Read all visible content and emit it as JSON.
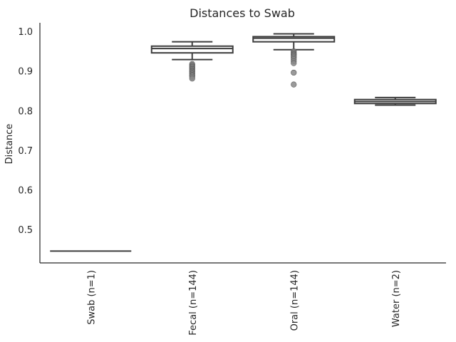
{
  "chart_data": {
    "type": "box",
    "title": "Distances to Swab",
    "xlabel": "",
    "ylabel": "Distance",
    "ylim": [
      0.415,
      1.022
    ],
    "yticks": [
      "0.5",
      "0.6",
      "0.7",
      "0.8",
      "0.9",
      "1.0"
    ],
    "grid": false,
    "categories": [
      "Swab (n=1)",
      "Fecal (n=144)",
      "Oral (n=144)",
      "Water (n=2)"
    ],
    "boxes": [
      {
        "category": "Swab (n=1)",
        "whislo": 0.445,
        "q1": 0.445,
        "med": 0.445,
        "q3": 0.445,
        "whishi": 0.445,
        "fliers": []
      },
      {
        "category": "Fecal (n=144)",
        "whislo": 0.929,
        "q1": 0.946,
        "med": 0.957,
        "q3": 0.963,
        "whishi": 0.974,
        "fliers": [
          0.918,
          0.915,
          0.912,
          0.91,
          0.907,
          0.905,
          0.902,
          0.9,
          0.898,
          0.895,
          0.893,
          0.89,
          0.888,
          0.885,
          0.881
        ]
      },
      {
        "category": "Oral (n=144)",
        "whislo": 0.954,
        "q1": 0.974,
        "med": 0.983,
        "q3": 0.987,
        "whishi": 0.994,
        "fliers": [
          0.95,
          0.947,
          0.944,
          0.942,
          0.94,
          0.937,
          0.934,
          0.93,
          0.925,
          0.92,
          0.896,
          0.866
        ]
      },
      {
        "category": "Water (n=2)",
        "whislo": 0.814,
        "q1": 0.818,
        "med": 0.823,
        "q3": 0.828,
        "whishi": 0.833,
        "fliers": []
      }
    ],
    "colors": {
      "box_line": "#3d3d3d",
      "flier": "#888888",
      "axis": "#262626"
    }
  }
}
